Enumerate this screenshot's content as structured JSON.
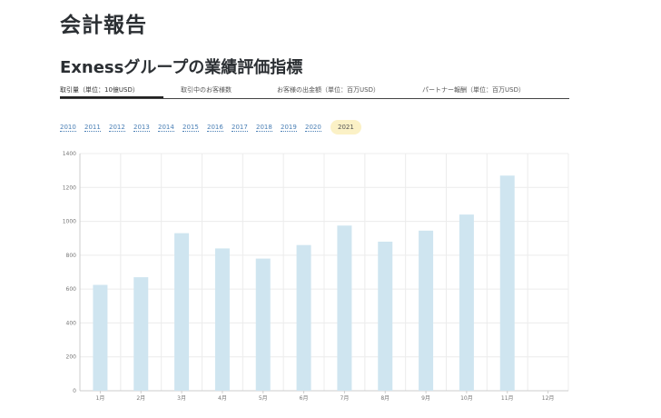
{
  "page": {
    "title": "会計報告",
    "subtitle": "Exnessグループの業績評価指標"
  },
  "tabs": [
    {
      "label": "取引量（単位：10億USD）",
      "active": true
    },
    {
      "label": "取引中のお客様数",
      "active": false
    },
    {
      "label": "お客様の出金額（単位：百万USD）",
      "active": false
    },
    {
      "label": "パートナー報酬（単位：百万USD）",
      "active": false
    }
  ],
  "years": [
    "2010",
    "2011",
    "2012",
    "2013",
    "2014",
    "2015",
    "2016",
    "2017",
    "2018",
    "2019",
    "2020",
    "2021"
  ],
  "selected_year": "2021",
  "colors": {
    "bar": "#cfe5f0",
    "grid": "#ececec",
    "axis": "#cccccc",
    "year_highlight": "#fbf1c6"
  },
  "chart_data": {
    "type": "bar",
    "categories": [
      "1月",
      "2月",
      "3月",
      "4月",
      "5月",
      "6月",
      "7月",
      "8月",
      "9月",
      "10月",
      "11月",
      "12月"
    ],
    "values": [
      625,
      670,
      930,
      840,
      780,
      860,
      975,
      880,
      945,
      1040,
      1270,
      null
    ],
    "ylim": [
      0,
      1400
    ],
    "yticks": [
      "0",
      "200",
      "400",
      "600",
      "800",
      "1000",
      "1200",
      "1400"
    ],
    "grid": true
  }
}
